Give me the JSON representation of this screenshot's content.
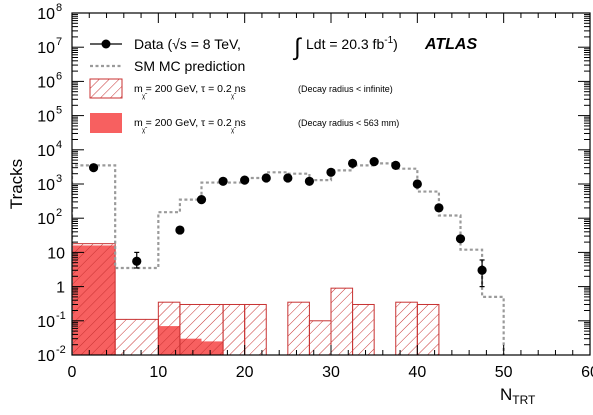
{
  "chart_data": {
    "type": "histogram",
    "xlabel": "N",
    "xlabel_sub": "TRT",
    "ylabel": "Tracks",
    "xlim": [
      0,
      60
    ],
    "ylim": [
      0.01,
      100000000
    ],
    "yscale": "log",
    "x_ticks": [
      0,
      10,
      20,
      30,
      40,
      50,
      60
    ],
    "y_ticks": [
      {
        "v": 0.01,
        "b": "10",
        "e": "-2"
      },
      {
        "v": 0.1,
        "b": "10",
        "e": "-1"
      },
      {
        "v": 1,
        "b": "1",
        "e": ""
      },
      {
        "v": 10,
        "b": "10",
        "e": ""
      },
      {
        "v": 100,
        "b": "10",
        "e": "2"
      },
      {
        "v": 1000,
        "b": "10",
        "e": "3"
      },
      {
        "v": 10000,
        "b": "10",
        "e": "4"
      },
      {
        "v": 100000,
        "b": "10",
        "e": "5"
      },
      {
        "v": 1000000,
        "b": "10",
        "e": "6"
      },
      {
        "v": 10000000,
        "b": "10",
        "e": "7"
      },
      {
        "v": 100000000,
        "b": "10",
        "e": "8"
      }
    ],
    "legend_position": "top-left",
    "experiment_label": "ATLAS",
    "legend": {
      "data_label_part1": "Data (",
      "data_label_sqrt": "√s",
      "data_label_part2": " = 8 TeV, ",
      "data_lumi_int": "∫",
      "data_lumi": "Ldt = 20.3 fb",
      "data_lumi_exp": "-1",
      "data_lumi_close": ")",
      "mc_label": "SM MC prediction",
      "signal1_label": "m  = 200 GeV, τ  = 0.2 ns",
      "signal1_note": "(Decay radius < infinite)",
      "signal2_label": "m  = 200 GeV, τ  = 0.2 ns",
      "signal2_note": "(Decay radius < 563 mm)",
      "chi_symbol": "χ̃",
      "chi_sub": "1",
      "chi_sup": "±"
    },
    "series": [
      {
        "name": "Data",
        "kind": "points_with_errors",
        "points": [
          {
            "x": 2.5,
            "y": 3000
          },
          {
            "x": 7.5,
            "y": 5.5,
            "ylo": 3.5,
            "yhi": 10
          },
          {
            "x": 12.5,
            "y": 45
          },
          {
            "x": 15,
            "y": 350
          },
          {
            "x": 17.5,
            "y": 1200
          },
          {
            "x": 20,
            "y": 1300
          },
          {
            "x": 22.5,
            "y": 1500
          },
          {
            "x": 25,
            "y": 1500
          },
          {
            "x": 27.5,
            "y": 1200
          },
          {
            "x": 30,
            "y": 2200
          },
          {
            "x": 32.5,
            "y": 4000
          },
          {
            "x": 35,
            "y": 4500
          },
          {
            "x": 37.5,
            "y": 3500
          },
          {
            "x": 40,
            "y": 1000
          },
          {
            "x": 42.5,
            "y": 200
          },
          {
            "x": 45,
            "y": 25
          },
          {
            "x": 47.5,
            "y": 3,
            "ylo": 1,
            "yhi": 6
          }
        ]
      },
      {
        "name": "SM MC prediction",
        "kind": "step",
        "edges": [
          0,
          5,
          10,
          12.5,
          15,
          20,
          22.5,
          25,
          27.5,
          30,
          32.5,
          35,
          37.5,
          40,
          42.5,
          45,
          47.5,
          50
        ],
        "values": [
          3500,
          3.5,
          150,
          350,
          1100,
          1500,
          2200,
          2000,
          1300,
          2500,
          3500,
          4000,
          2800,
          600,
          120,
          12,
          0.5
        ]
      },
      {
        "name": "Signal decay radius < infinite",
        "kind": "hatched_bars",
        "edges": [
          0,
          5,
          10,
          12.5,
          17.5,
          20,
          22.5,
          25,
          27.5,
          30,
          32.5,
          35,
          37.5,
          40,
          42.5
        ],
        "values": [
          18,
          0.11,
          0.35,
          0.3,
          0.3,
          0.3,
          0.01,
          0.35,
          0.1,
          0.9,
          0.3,
          0.01,
          0.35,
          0.3
        ]
      },
      {
        "name": "Signal decay radius < 563 mm",
        "kind": "filled_bars",
        "edges": [
          0,
          5,
          10,
          12.5,
          15,
          17.5
        ],
        "values": [
          16,
          0.01,
          0.07,
          0.03,
          0.025
        ]
      }
    ]
  }
}
